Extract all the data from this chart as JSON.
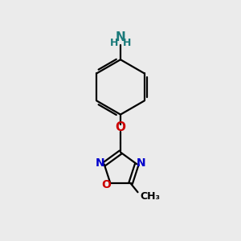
{
  "background_color": "#ebebeb",
  "bond_color": "#000000",
  "N_color": "#0000cc",
  "O_color": "#cc0000",
  "NH2_N_color": "#1a7a7a",
  "NH2_H_color": "#1a7a7a",
  "figsize": [
    3.0,
    3.0
  ],
  "dpi": 100,
  "xlim": [
    0,
    10
  ],
  "ylim": [
    0,
    10
  ]
}
